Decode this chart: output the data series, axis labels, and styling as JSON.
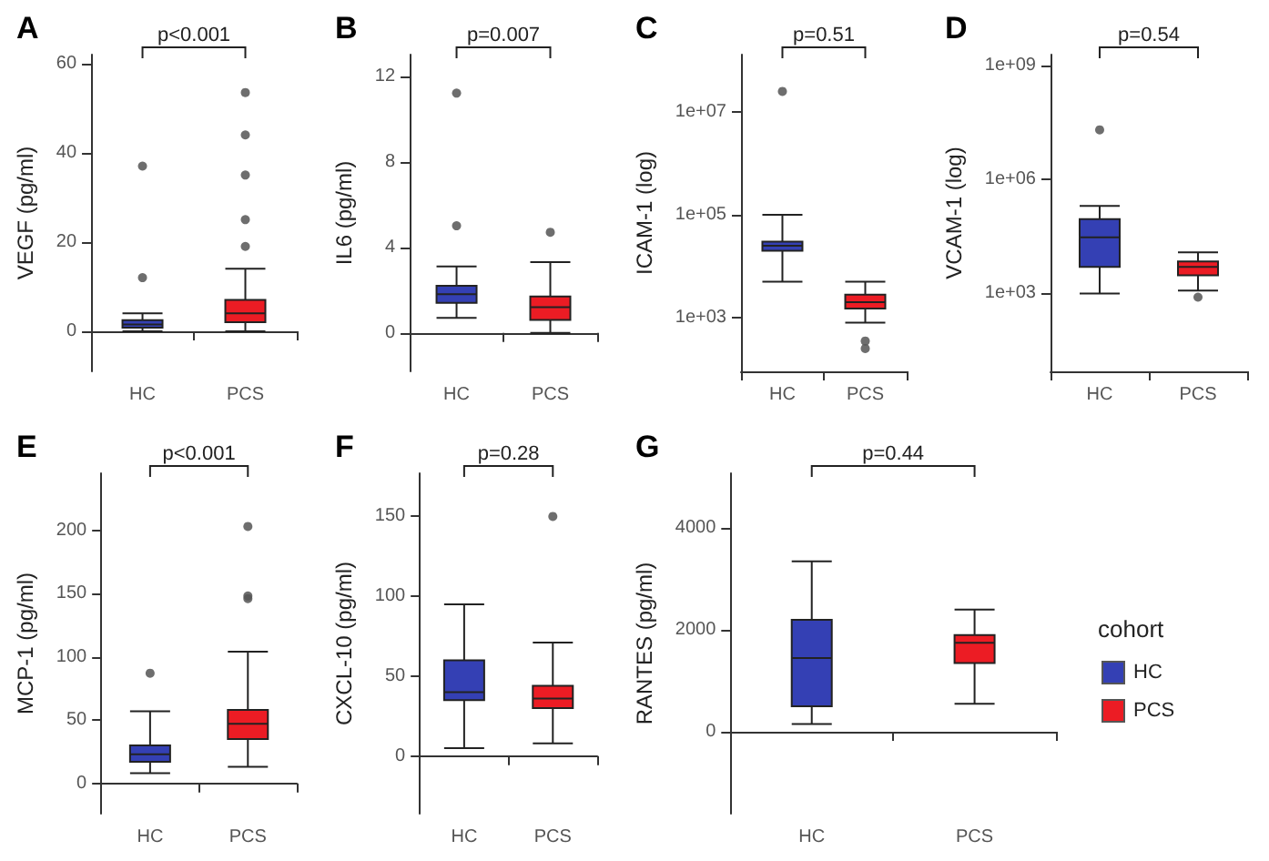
{
  "chart_data": [
    {
      "type": "box",
      "title": "A",
      "ylabel": "VEGF (pg/ml)",
      "categories": [
        "HC",
        "PCS"
      ],
      "annotations": [
        "p<0.001"
      ],
      "ylim": [
        -9,
        62
      ],
      "yticks": [
        0,
        20,
        40,
        60
      ],
      "series": [
        {
          "color": "#3440b4",
          "boxes": [
            {
              "low": 0,
              "q1": 0.8,
              "median": 1.5,
              "q3": 2.5,
              "high": 4,
              "outliers": [
                12,
                37
              ]
            },
            null
          ]
        },
        {
          "color": "#ec1c24",
          "boxes": [
            null,
            {
              "low": 0,
              "q1": 2,
              "median": 4,
              "q3": 7,
              "high": 14,
              "outliers": [
                19,
                25,
                35,
                44,
                53.5
              ]
            }
          ]
        }
      ]
    },
    {
      "type": "box",
      "title": "B",
      "ylabel": "IL6 (pg/ml)",
      "categories": [
        "HC",
        "PCS"
      ],
      "annotations": [
        "p=0.007"
      ],
      "ylim": [
        -1.8,
        13
      ],
      "yticks": [
        0,
        4,
        8,
        12
      ],
      "series": [
        {
          "color": "#3440b4",
          "boxes": [
            {
              "low": 0.7,
              "q1": 1.4,
              "median": 1.8,
              "q3": 2.2,
              "high": 3.1,
              "outliers": [
                5,
                11.2
              ]
            },
            null
          ]
        },
        {
          "color": "#ec1c24",
          "boxes": [
            null,
            {
              "low": 0,
              "q1": 0.6,
              "median": 1.2,
              "q3": 1.7,
              "high": 3.3,
              "outliers": [
                4.7
              ]
            }
          ]
        }
      ]
    },
    {
      "type": "box",
      "title": "C",
      "ylabel": "ICAM-1 (log)",
      "categories": [
        "HC",
        "PCS"
      ],
      "annotations": [
        "p=0.51"
      ],
      "log": true,
      "ylim": [
        90,
        130000000
      ],
      "yticks": [
        {
          "value": 1000,
          "label": "1e+03"
        },
        {
          "value": 100000,
          "label": "1e+05"
        },
        {
          "value": 10000000,
          "label": "1e+07"
        }
      ],
      "series": [
        {
          "color": "#3440b4",
          "boxes": [
            {
              "low": 5000,
              "q1": 20000,
              "median": 25000,
              "q3": 30000,
              "high": 100000,
              "outliers": [
                25000000
              ]
            },
            null
          ]
        },
        {
          "color": "#ec1c24",
          "boxes": [
            null,
            {
              "low": 800,
              "q1": 1500,
              "median": 2000,
              "q3": 2800,
              "high": 5000,
              "outliers": [
                250,
                350
              ]
            }
          ]
        }
      ]
    },
    {
      "type": "box",
      "title": "D",
      "ylabel": "VCAM-1 (log)",
      "categories": [
        "HC",
        "PCS"
      ],
      "annotations": [
        "p=0.54"
      ],
      "log": true,
      "ylim": [
        9,
        1900000000
      ],
      "yticks": [
        {
          "value": 1000,
          "label": "1e+03"
        },
        {
          "value": 1000000,
          "label": "1e+06"
        },
        {
          "value": 1000000000,
          "label": "1e+09"
        }
      ],
      "series": [
        {
          "color": "#3440b4",
          "boxes": [
            {
              "low": 1000,
              "q1": 5000,
              "median": 30000,
              "q3": 90000,
              "high": 200000,
              "outliers": [
                20000000
              ]
            },
            null
          ]
        },
        {
          "color": "#ec1c24",
          "boxes": [
            null,
            {
              "low": 1200,
              "q1": 3000,
              "median": 5000,
              "q3": 7000,
              "high": 12000,
              "outliers": [
                800
              ]
            }
          ]
        }
      ]
    },
    {
      "type": "box",
      "title": "E",
      "ylabel": "MCP-1 (pg/ml)",
      "categories": [
        "HC",
        "PCS"
      ],
      "annotations": [
        "p<0.001"
      ],
      "ylim": [
        -24,
        245
      ],
      "yticks": [
        0,
        50,
        100,
        150,
        200
      ],
      "series": [
        {
          "color": "#3440b4",
          "boxes": [
            {
              "low": 8,
              "q1": 17,
              "median": 23,
              "q3": 30,
              "high": 57,
              "outliers": [
                87
              ]
            },
            null
          ]
        },
        {
          "color": "#ec1c24",
          "boxes": [
            null,
            {
              "low": 13,
              "q1": 35,
              "median": 47,
              "q3": 58,
              "high": 104,
              "outliers": [
                146,
                148,
                203
              ]
            }
          ]
        }
      ]
    },
    {
      "type": "box",
      "title": "F",
      "ylabel": "CXCL-10 (pg/ml)",
      "categories": [
        "HC",
        "PCS"
      ],
      "annotations": [
        "p=0.28"
      ],
      "ylim": [
        -36,
        177
      ],
      "yticks": [
        0,
        50,
        100,
        150
      ],
      "series": [
        {
          "color": "#3440b4",
          "boxes": [
            {
              "low": 5,
              "q1": 35,
              "median": 40,
              "q3": 60,
              "high": 95
            },
            null
          ]
        },
        {
          "color": "#ec1c24",
          "boxes": [
            null,
            {
              "low": 8,
              "q1": 30,
              "median": 36,
              "q3": 44,
              "high": 71,
              "outliers": [
                150
              ]
            }
          ]
        }
      ]
    },
    {
      "type": "box",
      "title": "G",
      "ylabel": "RANTES (pg/ml)",
      "categories": [
        "HC",
        "PCS"
      ],
      "annotations": [
        "p=0.44"
      ],
      "ylim": [
        -1610,
        5080
      ],
      "yticks": [
        0,
        2000,
        4000
      ],
      "legend": "right",
      "legend_title": "cohort",
      "series": [
        {
          "name": "HC",
          "color": "#3440b4",
          "boxes": [
            {
              "low": 150,
              "q1": 500,
              "median": 1450,
              "q3": 2200,
              "high": 3350
            },
            null
          ]
        },
        {
          "name": "PCS",
          "color": "#ec1c24",
          "boxes": [
            null,
            {
              "low": 550,
              "q1": 1350,
              "median": 1750,
              "q3": 1900,
              "high": 2400
            }
          ]
        }
      ]
    }
  ]
}
